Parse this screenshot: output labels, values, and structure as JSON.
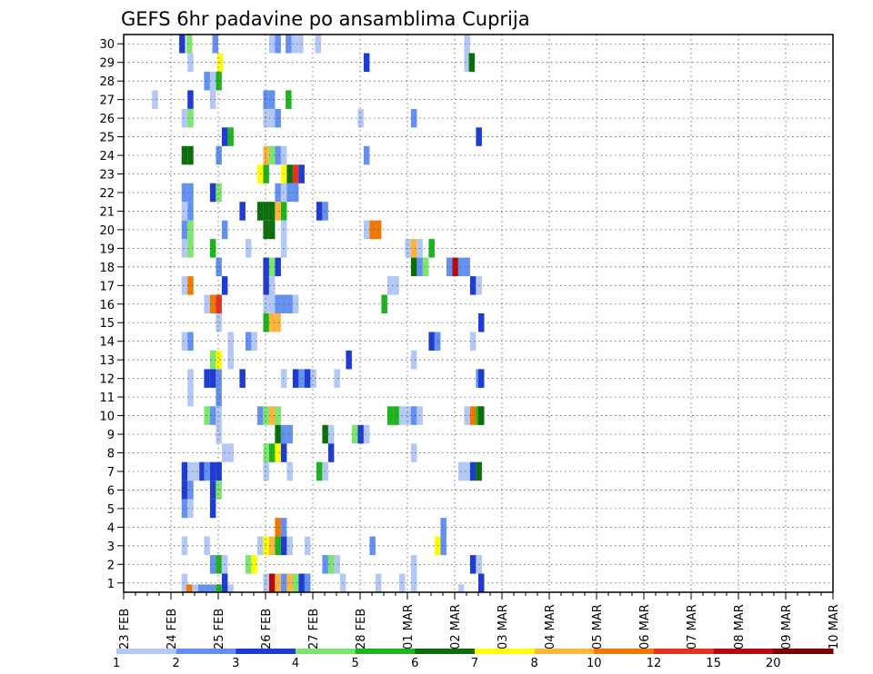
{
  "chart_data": {
    "type": "heatmap",
    "title": "GEFS 6hr padavine po ansamblima Cuprija",
    "x_labels": [
      "23 FEB",
      "24 FEB",
      "25 FEB",
      "26 FEB",
      "27 FEB",
      "28 FEB",
      "01 MAR",
      "02 MAR",
      "03 MAR",
      "04 MAR",
      "05 MAR",
      "06 MAR",
      "07 MAR",
      "08 MAR",
      "09 MAR",
      "10 MAR"
    ],
    "y_labels": [
      "1",
      "2",
      "3",
      "4",
      "5",
      "6",
      "7",
      "8",
      "9",
      "10",
      "11",
      "12",
      "13",
      "14",
      "15",
      "16",
      "17",
      "18",
      "19",
      "20",
      "21",
      "22",
      "23",
      "24",
      "25",
      "26",
      "27",
      "28",
      "29",
      "30"
    ],
    "xlim": [
      0,
      60
    ],
    "ylim": [
      0.5,
      30.5
    ],
    "grid": true,
    "legend_position": "bottom",
    "levels": [
      "1",
      "2",
      "3",
      "4",
      "5",
      "6",
      "7",
      "8",
      "10",
      "12",
      "15",
      "20"
    ],
    "colors": [
      "#b4c8f5",
      "#6490f0",
      "#1e3cd2",
      "#7ce66e",
      "#1eb41e",
      "#0a6e0a",
      "#ffff00",
      "#ffb43c",
      "#f07800",
      "#e6321e",
      "#b40a0a",
      "#780000"
    ],
    "cells": [
      [
        30,
        4.7,
        2
      ],
      [
        30,
        5.3,
        3
      ],
      [
        30,
        7.5,
        1
      ],
      [
        30,
        12.3,
        0
      ],
      [
        30,
        12.8,
        1
      ],
      [
        30,
        13.7,
        1
      ],
      [
        30,
        14.2,
        0
      ],
      [
        30,
        14.7,
        0
      ],
      [
        30,
        16.2,
        0
      ],
      [
        30,
        28.8,
        0
      ],
      [
        29,
        5.4,
        0
      ],
      [
        29,
        7.9,
        6
      ],
      [
        29,
        20.3,
        2
      ],
      [
        29,
        28.8,
        0
      ],
      [
        29,
        29.2,
        5
      ],
      [
        28,
        6.8,
        1
      ],
      [
        28,
        7.3,
        0
      ],
      [
        28,
        7.8,
        4
      ],
      [
        27,
        2.4,
        0
      ],
      [
        27,
        5.4,
        2
      ],
      [
        27,
        7.3,
        0
      ],
      [
        27,
        11.8,
        1
      ],
      [
        27,
        12.3,
        1
      ],
      [
        27,
        13.7,
        4
      ],
      [
        26,
        4.9,
        0
      ],
      [
        26,
        5.4,
        3
      ],
      [
        26,
        11.8,
        0
      ],
      [
        26,
        12.3,
        0
      ],
      [
        26,
        12.8,
        1
      ],
      [
        26,
        19.8,
        0
      ],
      [
        26,
        24.3,
        1
      ],
      [
        25,
        8.3,
        2
      ],
      [
        25,
        8.8,
        4
      ],
      [
        25,
        29.8,
        2
      ],
      [
        24,
        4.9,
        5
      ],
      [
        24,
        5.4,
        5
      ],
      [
        24,
        7.8,
        1
      ],
      [
        24,
        11.8,
        7
      ],
      [
        24,
        12.3,
        3
      ],
      [
        24,
        12.8,
        1
      ],
      [
        24,
        13.3,
        0
      ],
      [
        24,
        20.3,
        1
      ],
      [
        23,
        11.3,
        6
      ],
      [
        23,
        11.8,
        4
      ],
      [
        23,
        13.3,
        6
      ],
      [
        23,
        13.8,
        5
      ],
      [
        23,
        14.3,
        9
      ],
      [
        23,
        14.8,
        2
      ],
      [
        22,
        4.9,
        1
      ],
      [
        22,
        5.4,
        1
      ],
      [
        22,
        7.3,
        2
      ],
      [
        22,
        7.8,
        3
      ],
      [
        22,
        12.8,
        1
      ],
      [
        22,
        13.3,
        0
      ],
      [
        22,
        13.8,
        1
      ],
      [
        22,
        14.3,
        1
      ],
      [
        21,
        4.9,
        0
      ],
      [
        21,
        5.4,
        1
      ],
      [
        21,
        9.8,
        2
      ],
      [
        21,
        11.3,
        5
      ],
      [
        21,
        11.8,
        5
      ],
      [
        21,
        12.3,
        5
      ],
      [
        21,
        12.8,
        7
      ],
      [
        21,
        13.3,
        4
      ],
      [
        21,
        16.3,
        2
      ],
      [
        21,
        16.8,
        1
      ],
      [
        20,
        4.9,
        1
      ],
      [
        20,
        5.4,
        3
      ],
      [
        20,
        8.3,
        1
      ],
      [
        20,
        11.8,
        5
      ],
      [
        20,
        12.3,
        5
      ],
      [
        20,
        13.3,
        0
      ],
      [
        20,
        20.3,
        0
      ],
      [
        20,
        20.8,
        8
      ],
      [
        20,
        21.3,
        8
      ],
      [
        19,
        4.9,
        0
      ],
      [
        19,
        5.4,
        3
      ],
      [
        19,
        7.3,
        4
      ],
      [
        19,
        10.3,
        0
      ],
      [
        19,
        13.3,
        0
      ],
      [
        19,
        23.8,
        0
      ],
      [
        19,
        24.3,
        7
      ],
      [
        19,
        24.8,
        0
      ],
      [
        19,
        25.8,
        4
      ],
      [
        18,
        7.8,
        1
      ],
      [
        18,
        11.8,
        2
      ],
      [
        18,
        12.3,
        3
      ],
      [
        18,
        12.8,
        2
      ],
      [
        18,
        24.3,
        5
      ],
      [
        18,
        24.8,
        1
      ],
      [
        18,
        25.3,
        3
      ],
      [
        18,
        27.3,
        1
      ],
      [
        18,
        27.8,
        10
      ],
      [
        18,
        28.3,
        1
      ],
      [
        18,
        28.8,
        1
      ],
      [
        17,
        4.9,
        0
      ],
      [
        17,
        5.4,
        8
      ],
      [
        17,
        8.3,
        2
      ],
      [
        17,
        11.8,
        2
      ],
      [
        17,
        12.3,
        0
      ],
      [
        17,
        22.3,
        0
      ],
      [
        17,
        22.8,
        0
      ],
      [
        17,
        29.3,
        2
      ],
      [
        17,
        29.8,
        0
      ],
      [
        16,
        6.8,
        0
      ],
      [
        16,
        7.3,
        8
      ],
      [
        16,
        7.8,
        9
      ],
      [
        16,
        11.8,
        0
      ],
      [
        16,
        12.3,
        0
      ],
      [
        16,
        12.8,
        1
      ],
      [
        16,
        13.3,
        1
      ],
      [
        16,
        13.8,
        1
      ],
      [
        16,
        14.3,
        0
      ],
      [
        16,
        21.8,
        4
      ],
      [
        15,
        7.8,
        0
      ],
      [
        15,
        11.8,
        4
      ],
      [
        15,
        12.3,
        7
      ],
      [
        15,
        12.8,
        7
      ],
      [
        15,
        30.0,
        2
      ],
      [
        14,
        4.9,
        0
      ],
      [
        14,
        5.4,
        1
      ],
      [
        14,
        8.8,
        0
      ],
      [
        14,
        10.3,
        1
      ],
      [
        14,
        10.8,
        0
      ],
      [
        14,
        25.8,
        2
      ],
      [
        14,
        26.3,
        1
      ],
      [
        14,
        29.3,
        0
      ],
      [
        13,
        7.3,
        3
      ],
      [
        13,
        7.8,
        6
      ],
      [
        13,
        8.8,
        0
      ],
      [
        13,
        18.8,
        2
      ],
      [
        13,
        24.3,
        0
      ],
      [
        12,
        5.4,
        0
      ],
      [
        12,
        6.8,
        2
      ],
      [
        12,
        7.3,
        2
      ],
      [
        12,
        7.8,
        1
      ],
      [
        12,
        9.8,
        2
      ],
      [
        12,
        13.3,
        0
      ],
      [
        12,
        14.3,
        2
      ],
      [
        12,
        14.8,
        1
      ],
      [
        12,
        15.3,
        2
      ],
      [
        12,
        15.8,
        0
      ],
      [
        12,
        17.8,
        0
      ],
      [
        12,
        29.8,
        1
      ],
      [
        12,
        30.0,
        2
      ],
      [
        11,
        5.4,
        0
      ],
      [
        11,
        7.8,
        1
      ],
      [
        10,
        6.8,
        3
      ],
      [
        10,
        7.3,
        1
      ],
      [
        10,
        7.8,
        0
      ],
      [
        10,
        11.3,
        1
      ],
      [
        10,
        11.8,
        3
      ],
      [
        10,
        12.3,
        7
      ],
      [
        10,
        12.8,
        3
      ],
      [
        10,
        22.3,
        4
      ],
      [
        10,
        22.8,
        4
      ],
      [
        10,
        23.3,
        0
      ],
      [
        10,
        23.8,
        0
      ],
      [
        10,
        24.3,
        1
      ],
      [
        10,
        24.8,
        0
      ],
      [
        10,
        28.8,
        0
      ],
      [
        10,
        29.3,
        8
      ],
      [
        10,
        29.8,
        4
      ],
      [
        10,
        30.0,
        5
      ],
      [
        9,
        7.8,
        0
      ],
      [
        9,
        12.8,
        5
      ],
      [
        9,
        13.3,
        1
      ],
      [
        9,
        13.8,
        1
      ],
      [
        9,
        16.8,
        5
      ],
      [
        9,
        17.3,
        0
      ],
      [
        9,
        19.3,
        3
      ],
      [
        9,
        19.8,
        2
      ],
      [
        9,
        20.3,
        0
      ],
      [
        8,
        8.3,
        0
      ],
      [
        8,
        8.8,
        0
      ],
      [
        8,
        11.8,
        3
      ],
      [
        8,
        12.3,
        4
      ],
      [
        8,
        12.8,
        6
      ],
      [
        8,
        13.3,
        2
      ],
      [
        8,
        17.3,
        2
      ],
      [
        8,
        24.3,
        0
      ],
      [
        7,
        4.9,
        2
      ],
      [
        7,
        5.4,
        0
      ],
      [
        7,
        5.9,
        0
      ],
      [
        7,
        6.4,
        2
      ],
      [
        7,
        6.8,
        1
      ],
      [
        7,
        7.3,
        2
      ],
      [
        7,
        7.8,
        2
      ],
      [
        7,
        11.8,
        0
      ],
      [
        7,
        13.8,
        0
      ],
      [
        7,
        16.3,
        4
      ],
      [
        7,
        16.8,
        0
      ],
      [
        7,
        28.3,
        0
      ],
      [
        7,
        28.8,
        0
      ],
      [
        7,
        29.3,
        2
      ],
      [
        7,
        29.8,
        5
      ],
      [
        6,
        4.9,
        2
      ],
      [
        6,
        5.4,
        1
      ],
      [
        6,
        7.3,
        2
      ],
      [
        6,
        7.8,
        3
      ],
      [
        5,
        4.9,
        1
      ],
      [
        5,
        5.4,
        0
      ],
      [
        5,
        7.3,
        2
      ],
      [
        4,
        12.8,
        8
      ],
      [
        4,
        13.3,
        1
      ],
      [
        4,
        26.8,
        1
      ],
      [
        3,
        4.9,
        0
      ],
      [
        3,
        6.8,
        0
      ],
      [
        3,
        11.3,
        0
      ],
      [
        3,
        11.8,
        6
      ],
      [
        3,
        12.3,
        7
      ],
      [
        3,
        12.8,
        4
      ],
      [
        3,
        13.3,
        2
      ],
      [
        3,
        13.8,
        0
      ],
      [
        3,
        15.3,
        0
      ],
      [
        3,
        20.8,
        1
      ],
      [
        3,
        26.3,
        6
      ],
      [
        3,
        26.8,
        1
      ],
      [
        2,
        7.3,
        1
      ],
      [
        2,
        7.8,
        4
      ],
      [
        2,
        8.3,
        0
      ],
      [
        2,
        10.3,
        3
      ],
      [
        2,
        10.8,
        6
      ],
      [
        2,
        16.8,
        1
      ],
      [
        2,
        17.3,
        3
      ],
      [
        2,
        17.8,
        0
      ],
      [
        2,
        24.3,
        0
      ],
      [
        2,
        29.3,
        2
      ],
      [
        2,
        29.8,
        0
      ],
      [
        1,
        4.9,
        0
      ],
      [
        1,
        8.3,
        2
      ],
      [
        1,
        11.8,
        0
      ],
      [
        1,
        12.3,
        10
      ],
      [
        1,
        12.8,
        7
      ],
      [
        1,
        13.3,
        1
      ],
      [
        1,
        13.8,
        7
      ],
      [
        1,
        14.3,
        3
      ],
      [
        1,
        14.8,
        2
      ],
      [
        1,
        15.3,
        1
      ],
      [
        1,
        18.3,
        0
      ],
      [
        1,
        21.3,
        0
      ],
      [
        1,
        23.3,
        0
      ],
      [
        1,
        24.3,
        0
      ],
      [
        1,
        30.0,
        2
      ],
      [
        0.5,
        5.3,
        8
      ],
      [
        0.5,
        5.8,
        0
      ],
      [
        0.5,
        6.3,
        1
      ],
      [
        0.5,
        6.8,
        1
      ],
      [
        0.5,
        7.3,
        1
      ],
      [
        0.5,
        7.8,
        4
      ],
      [
        0.5,
        8.8,
        0
      ],
      [
        0.5,
        18.3,
        0
      ],
      [
        0.5,
        28.3,
        0
      ]
    ]
  }
}
